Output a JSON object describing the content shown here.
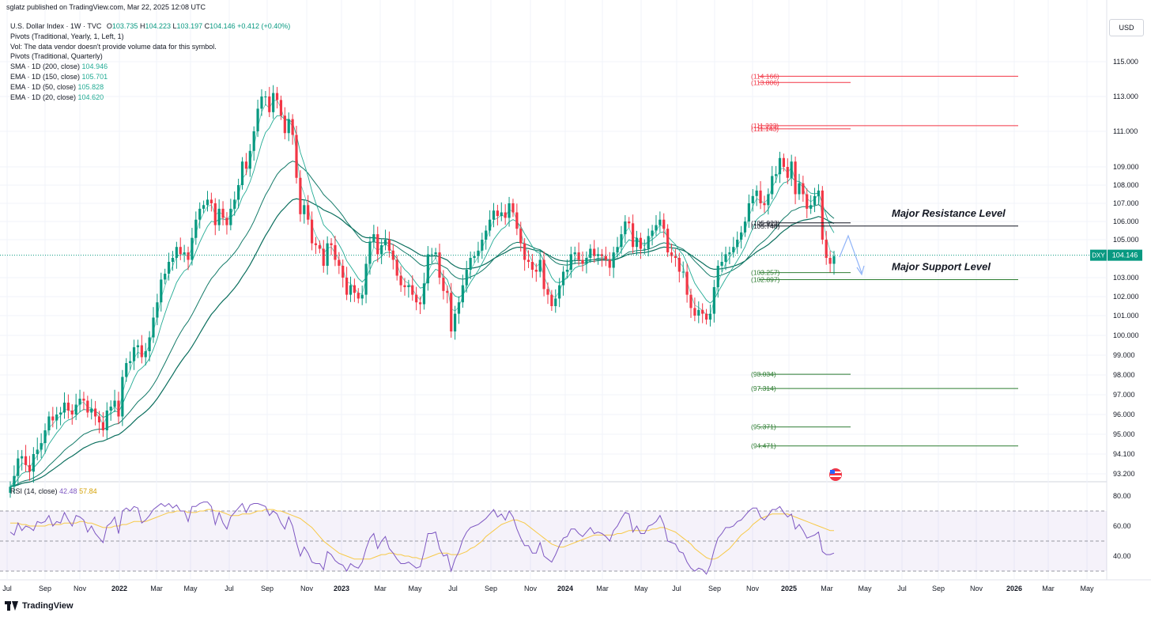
{
  "header": {
    "publisher": "sglatz published on TradingView.com, Mar 22, 2025 12:08 UTC"
  },
  "legend": {
    "symbol_line": "U.S. Dollar Index · 1W · TVC",
    "ohlc": {
      "o_label": "O",
      "o": "103.735",
      "h_label": "H",
      "h": "104.223",
      "l_label": "L",
      "l": "103.197",
      "c_label": "C",
      "c": "104.146",
      "chg": "+0.412 (+0.40%)"
    },
    "lines": [
      {
        "text": "Pivots (Traditional, Yearly, 1, Left, 1)"
      },
      {
        "text": "Vol: The data vendor doesn't provide volume data for this symbol."
      },
      {
        "text": "Pivots (Traditional, Quarterly)"
      }
    ],
    "mas": [
      {
        "label": "SMA · 1D (200, close)",
        "value": "104.946"
      },
      {
        "label": "EMA · 1D (150, close)",
        "value": "105.701"
      },
      {
        "label": "EMA · 1D (50, close)",
        "value": "105.828"
      },
      {
        "label": "EMA · 1D (20, close)",
        "value": "104.620"
      }
    ]
  },
  "currency_button": "USD",
  "footer": {
    "brand": "TradingView"
  },
  "colors": {
    "up": "#089981",
    "down": "#f23645",
    "resistance": "#f23645",
    "support": "#089981",
    "rsi_line": "#7e57c2",
    "rsi_ma": "#f7c948",
    "ma": "#22ab94",
    "ma_dark": "#0a6e5d",
    "arrow": "#2962ff"
  },
  "chart_data": [
    {
      "type": "candlestick",
      "symbol": "DXY",
      "last_label": "DXY",
      "last_value": "104.146",
      "last_price": 104.146,
      "y_ticks": [
        115.0,
        113.0,
        111.0,
        109.0,
        108.0,
        107.0,
        106.0,
        105.0,
        103.0,
        102.0,
        101.0,
        100.0,
        99.0,
        98.0,
        97.0,
        96.0,
        95.0,
        94.1,
        93.2
      ],
      "y_tick_labels": [
        "115.000",
        "113.000",
        "111.000",
        "109.000",
        "108.000",
        "107.000",
        "106.000",
        "105.000",
        "103.000",
        "102.000",
        "101.000",
        "100.000",
        "99.000",
        "98.000",
        "97.000",
        "96.000",
        "95.000",
        "94.100",
        "93.200"
      ],
      "x_labels": [
        "Jul",
        "Sep",
        "Nov",
        "2022",
        "Mar",
        "May",
        "Jul",
        "Sep",
        "Nov",
        "2023",
        "Mar",
        "May",
        "Jul",
        "Sep",
        "Nov",
        "2024",
        "Mar",
        "May",
        "Jul",
        "Sep",
        "Nov",
        "2025",
        "Mar",
        "May",
        "Jul",
        "Sep",
        "Nov",
        "2026",
        "Mar",
        "May"
      ],
      "pivot_levels": [
        {
          "label": "(114.166)",
          "value": 114.166,
          "kind": "resistance",
          "span": "long"
        },
        {
          "label": "(113.806)",
          "value": 113.806,
          "kind": "resistance",
          "span": "short"
        },
        {
          "label": "(111.323)",
          "value": 111.323,
          "kind": "resistance",
          "span": "long"
        },
        {
          "label": "(111.143)",
          "value": 111.143,
          "kind": "resistance",
          "span": "short"
        },
        {
          "label": "(105.923)",
          "value": 105.923,
          "kind": "pivot",
          "span": "short"
        },
        {
          "label": "(105.748)",
          "value": 105.748,
          "kind": "pivot",
          "span": "long"
        },
        {
          "label": "(103.257)",
          "value": 103.257,
          "kind": "support",
          "span": "short"
        },
        {
          "label": "(102.897)",
          "value": 102.897,
          "kind": "support",
          "span": "long"
        },
        {
          "label": "(98.034)",
          "value": 98.034,
          "kind": "support",
          "span": "short"
        },
        {
          "label": "(97.314)",
          "value": 97.314,
          "kind": "support",
          "span": "long"
        },
        {
          "label": "(95.371)",
          "value": 95.371,
          "kind": "support",
          "span": "short"
        },
        {
          "label": "(94.471)",
          "value": 94.471,
          "kind": "support",
          "span": "long"
        }
      ],
      "annotations": [
        {
          "text": "Major Resistance Level",
          "value": 105.75
        },
        {
          "text": "Major Support Level",
          "value": 102.9
        }
      ],
      "series_close": [
        92.6,
        93.1,
        93.9,
        94.0,
        93.6,
        93.3,
        94.1,
        94.3,
        94.6,
        95.2,
        95.9,
        95.7,
        96.0,
        96.1,
        96.6,
        96.2,
        96.0,
        96.5,
        96.8,
        96.7,
        96.1,
        96.3,
        95.9,
        95.6,
        95.2,
        96.2,
        96.4,
        96.7,
        95.9,
        97.9,
        98.6,
        98.7,
        99.4,
        99.5,
        98.9,
        99.2,
        99.9,
        100.9,
        101.7,
        102.9,
        103.2,
        103.8,
        104.0,
        104.6,
        104.2,
        104.3,
        103.9,
        105.1,
        106.1,
        106.7,
        106.9,
        107.2,
        107.0,
        105.8,
        106.7,
        106.2,
        105.8,
        106.7,
        107.2,
        108.0,
        109.3,
        108.9,
        109.9,
        111.0,
        112.3,
        113.0,
        113.0,
        112.1,
        113.2,
        112.8,
        111.9,
        110.9,
        111.7,
        110.8,
        108.4,
        106.4,
        106.9,
        106.1,
        104.8,
        104.7,
        104.5,
        103.6,
        104.8,
        104.7,
        103.9,
        103.6,
        103.0,
        102.1,
        102.6,
        102.2,
        101.9,
        102.1,
        103.7,
        104.9,
        105.3,
        104.2,
        104.7,
        105.0,
        104.4,
        103.9,
        103.1,
        102.6,
        102.5,
        102.6,
        102.1,
        101.7,
        101.6,
        102.7,
        104.2,
        104.2,
        104.3,
        103.0,
        102.3,
        102.2,
        100.2,
        101.1,
        101.7,
        102.6,
        103.4,
        104.0,
        104.1,
        104.4,
        105.0,
        105.5,
        106.1,
        106.6,
        106.3,
        106.5,
        106.2,
        107.0,
        106.5,
        105.6,
        104.8,
        103.9,
        103.8,
        103.4,
        103.3,
        103.9,
        102.4,
        102.1,
        101.5,
        101.9,
        102.6,
        103.3,
        103.4,
        104.2,
        104.3,
        103.9,
        103.7,
        104.0,
        104.5,
        104.1,
        104.2,
        104.1,
        103.9,
        103.5,
        104.3,
        104.6,
        105.3,
        106.0,
        105.9,
        104.6,
        105.1,
        104.5,
        104.5,
        105.2,
        105.5,
        105.8,
        106.1,
        105.6,
        104.3,
        104.1,
        104.0,
        103.3,
        103.3,
        102.1,
        101.4,
        101.0,
        101.3,
        101.1,
        100.8,
        101.1,
        102.5,
        103.6,
        103.8,
        104.2,
        104.3,
        104.6,
        105.0,
        105.4,
        106.0,
        107.0,
        107.4,
        107.7,
        107.0,
        106.9,
        107.5,
        108.5,
        108.6,
        109.5,
        109.0,
        108.4,
        109.3,
        107.5,
        108.1,
        107.5,
        106.7,
        106.9,
        107.4,
        107.7,
        105.0,
        104.0,
        103.7,
        104.1
      ],
      "rsi": {
        "title": "RSI (14, close)",
        "rsi_value": "42.48",
        "ma_value": "57.84",
        "y_ticks": [
          80,
          60,
          40
        ],
        "y_tick_labels": [
          "80.00",
          "60.00",
          "40.00"
        ],
        "bands": {
          "upper": 70,
          "middle": 50,
          "lower": 30
        },
        "rsi_series": [
          56,
          54,
          62,
          57,
          60,
          59,
          57,
          63,
          62,
          63,
          67,
          60,
          63,
          62,
          69,
          64,
          60,
          67,
          66,
          64,
          56,
          60,
          55,
          52,
          49,
          60,
          62,
          66,
          55,
          70,
          72,
          70,
          73,
          72,
          62,
          64,
          67,
          71,
          73,
          75,
          73,
          75,
          72,
          74,
          70,
          70,
          63,
          73,
          73,
          75,
          76,
          76,
          73,
          61,
          69,
          62,
          58,
          66,
          69,
          72,
          75,
          69,
          74,
          75,
          75,
          74,
          73,
          67,
          70,
          68,
          62,
          58,
          66,
          60,
          49,
          40,
          46,
          42,
          36,
          35,
          35,
          31,
          43,
          41,
          37,
          35,
          34,
          30,
          35,
          33,
          32,
          36,
          45,
          52,
          55,
          45,
          50,
          53,
          45,
          42,
          38,
          35,
          35,
          36,
          34,
          32,
          33,
          43,
          55,
          55,
          56,
          45,
          40,
          41,
          30,
          38,
          43,
          51,
          56,
          59,
          60,
          61,
          63,
          65,
          68,
          71,
          66,
          68,
          64,
          70,
          66,
          58,
          52,
          47,
          47,
          42,
          42,
          49,
          40,
          38,
          36,
          41,
          47,
          52,
          53,
          58,
          58,
          55,
          53,
          56,
          59,
          55,
          56,
          55,
          53,
          50,
          57,
          60,
          65,
          69,
          68,
          56,
          60,
          55,
          55,
          60,
          61,
          63,
          67,
          61,
          50,
          49,
          48,
          43,
          42,
          36,
          32,
          30,
          32,
          31,
          28,
          34,
          44,
          52,
          55,
          59,
          59,
          60,
          63,
          64,
          67,
          70,
          72,
          72,
          66,
          64,
          67,
          71,
          71,
          73,
          69,
          66,
          68,
          58,
          61,
          57,
          52,
          53,
          54,
          56,
          43,
          41,
          41,
          42
        ],
        "ma_series": [
          62,
          62,
          62,
          61,
          61,
          60,
          60,
          60,
          60,
          60,
          61,
          61,
          61,
          61,
          62,
          62,
          62,
          62,
          63,
          63,
          62,
          62,
          61,
          60,
          59,
          59,
          59,
          60,
          60,
          61,
          61,
          62,
          63,
          63,
          63,
          63,
          64,
          65,
          66,
          67,
          68,
          69,
          69,
          70,
          70,
          70,
          69,
          69,
          69,
          70,
          70,
          71,
          71,
          70,
          70,
          69,
          68,
          67,
          67,
          67,
          68,
          68,
          68,
          69,
          70,
          70,
          71,
          71,
          71,
          70,
          70,
          69,
          68,
          67,
          66,
          65,
          63,
          61,
          59,
          56,
          53,
          50,
          48,
          46,
          44,
          42,
          41,
          40,
          39,
          38,
          38,
          38,
          38,
          38,
          39,
          40,
          41,
          41,
          42,
          42,
          41,
          41,
          40,
          40,
          39,
          39,
          38,
          38,
          39,
          40,
          41,
          42,
          42,
          42,
          41,
          41,
          41,
          42,
          43,
          45,
          46,
          48,
          50,
          53,
          55,
          57,
          59,
          61,
          62,
          63,
          64,
          64,
          63,
          62,
          60,
          58,
          56,
          54,
          52,
          50,
          48,
          47,
          46,
          46,
          47,
          48,
          49,
          50,
          51,
          52,
          53,
          54,
          54,
          54,
          54,
          54,
          54,
          55,
          55,
          56,
          57,
          57,
          57,
          57,
          57,
          57,
          58,
          58,
          59,
          59,
          58,
          57,
          56,
          54,
          52,
          50,
          48,
          45,
          43,
          41,
          39,
          38,
          38,
          39,
          41,
          43,
          45,
          48,
          51,
          54,
          56,
          58,
          61,
          63,
          65,
          66,
          67,
          68,
          68,
          68,
          68,
          68,
          67,
          66,
          65,
          64,
          63,
          62,
          61,
          60,
          59,
          58,
          57,
          57
        ]
      }
    }
  ]
}
